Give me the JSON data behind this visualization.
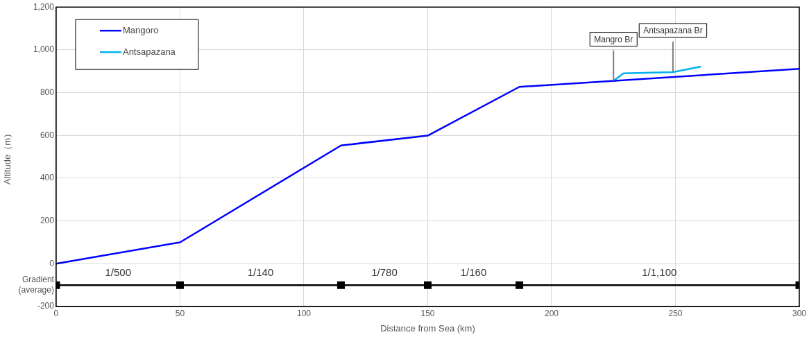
{
  "chart_data": {
    "type": "line",
    "xlabel": "Distance from Sea (km)",
    "ylabel": "Altitude（m）",
    "xlim": [
      0,
      300
    ],
    "xticks": [
      0,
      50,
      100,
      150,
      200,
      250,
      300
    ],
    "ylim": [
      -200,
      1200
    ],
    "yticks": [
      {
        "value": -200,
        "label": "-200"
      },
      {
        "value": -100,
        "label": "Gradient (average)"
      },
      {
        "value": 0,
        "label": "0"
      },
      {
        "value": 200,
        "label": "200"
      },
      {
        "value": 400,
        "label": "400"
      },
      {
        "value": 600,
        "label": "600"
      },
      {
        "value": 800,
        "label": "800"
      },
      {
        "value": 1000,
        "label": "1,000"
      },
      {
        "value": 1200,
        "label": "1,200"
      }
    ],
    "grid": true,
    "legend": "top left",
    "marker": "none",
    "line_style": "solid",
    "series": [
      {
        "name": "Mangoro",
        "color": "#0000ff",
        "x": [
          0,
          50,
          115,
          150,
          187,
          300
        ],
        "values": [
          0,
          100,
          553,
          599,
          827,
          911
        ]
      },
      {
        "name": "Antsapazana",
        "color": "#00b0f0",
        "x": [
          225,
          229,
          249,
          260
        ],
        "values": [
          855,
          890,
          896,
          921
        ]
      },
      {
        "color": "#000000",
        "marker": "square",
        "x": [
          0,
          50,
          115,
          150,
          187,
          300
        ],
        "values": [
          -100,
          -100,
          -100,
          -100,
          -100,
          -100
        ]
      }
    ],
    "annotations": [
      {
        "text": "1/500",
        "x": 25,
        "y": -100
      },
      {
        "text": "1/140",
        "x": 82.5,
        "y": -100
      },
      {
        "text": "1/780",
        "x": 132.5,
        "y": -100
      },
      {
        "text": "1/160",
        "x": 168.5,
        "y": -100
      },
      {
        "text": "1/1,100",
        "x": 243.5,
        "y": -100
      },
      {
        "text": "Mangro Br",
        "x": 225,
        "y": 855
      },
      {
        "text": "Antsapazana Br",
        "x": 249,
        "y": 896
      }
    ]
  }
}
